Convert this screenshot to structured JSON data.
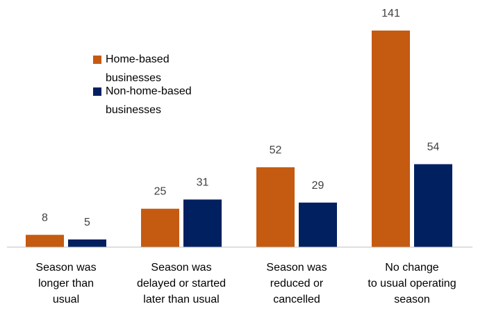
{
  "chart_data": {
    "type": "bar",
    "categories": [
      "Season was\nlonger than\nusual",
      "Season was\ndelayed or started\nlater than usual",
      "Season was\nreduced or\ncancelled",
      "No change\nto usual operating\nseason"
    ],
    "series": [
      {
        "name": "Home-based businesses",
        "color": "#c55a11",
        "values": [
          8,
          25,
          52,
          141
        ]
      },
      {
        "name": "Non-home-based businesses",
        "color": "#002060",
        "values": [
          5,
          31,
          29,
          54
        ]
      }
    ]
  }
}
